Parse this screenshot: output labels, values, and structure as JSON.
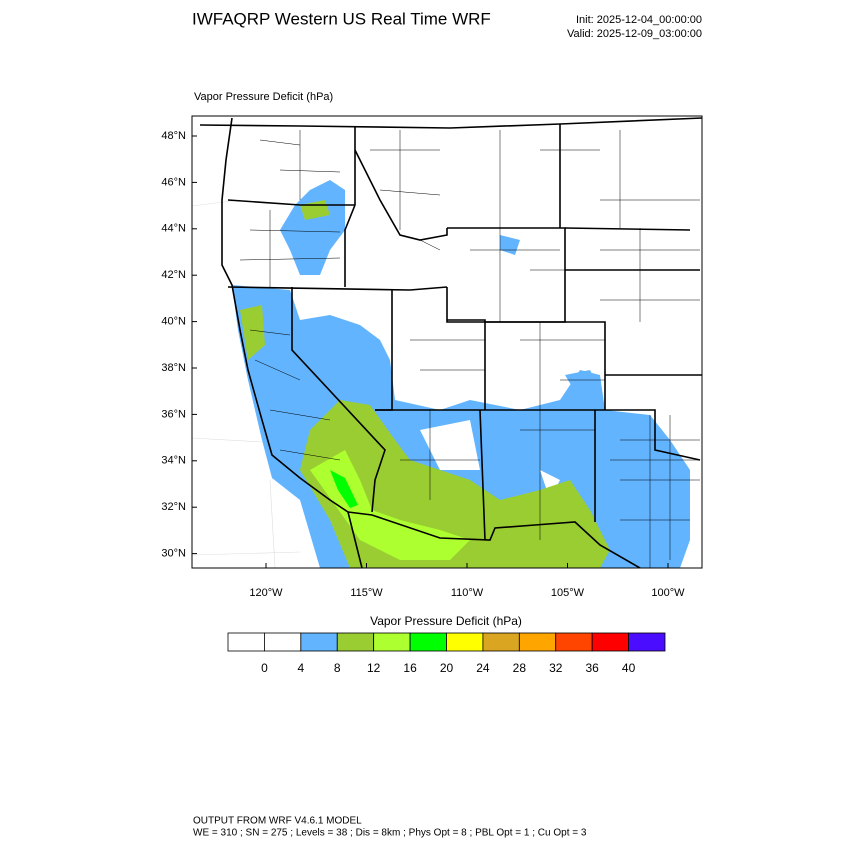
{
  "header": {
    "title": "IWFAQRP Western US Real Time WRF",
    "init": "Init: 2025-12-04_00:00:00",
    "valid": "Valid: 2025-12-09_03:00:00"
  },
  "map": {
    "field_label": "Vapor Pressure Deficit   (hPa)",
    "lat_ticks": [
      {
        "value": 48,
        "label": "48°N"
      },
      {
        "value": 46,
        "label": "46°N"
      },
      {
        "value": 44,
        "label": "44°N"
      },
      {
        "value": 42,
        "label": "42°N"
      },
      {
        "value": 40,
        "label": "40°N"
      },
      {
        "value": 38,
        "label": "38°N"
      },
      {
        "value": 36,
        "label": "36°N"
      },
      {
        "value": 34,
        "label": "34°N"
      },
      {
        "value": 32,
        "label": "32°N"
      },
      {
        "value": 30,
        "label": "30°N"
      }
    ],
    "lon_ticks": [
      {
        "value": -120,
        "label": "120°W"
      },
      {
        "value": -115,
        "label": "115°W"
      },
      {
        "value": -110,
        "label": "110°W"
      },
      {
        "value": -105,
        "label": "105°W"
      },
      {
        "value": -100,
        "label": "100°W"
      }
    ]
  },
  "colorbar": {
    "title": "Vapor Pressure Deficit  (hPa)",
    "levels": [
      0,
      4,
      8,
      12,
      16,
      20,
      24,
      28,
      32,
      36,
      40
    ],
    "colors": [
      "#ffffff",
      "#ffffff",
      "#62b4ff",
      "#9acd32",
      "#adff2f",
      "#00ff00",
      "#ffff00",
      "#daa520",
      "#ffa500",
      "#ff4500",
      "#ff0000",
      "#4b0dff"
    ]
  },
  "footer": {
    "line1": "OUTPUT FROM WRF V4.6.1 MODEL",
    "line2": "WE = 310 ; SN = 275 ; Levels = 38 ; Dis = 8km ; Phys Opt = 8 ; PBL Opt = 1 ; Cu Opt = 3"
  }
}
